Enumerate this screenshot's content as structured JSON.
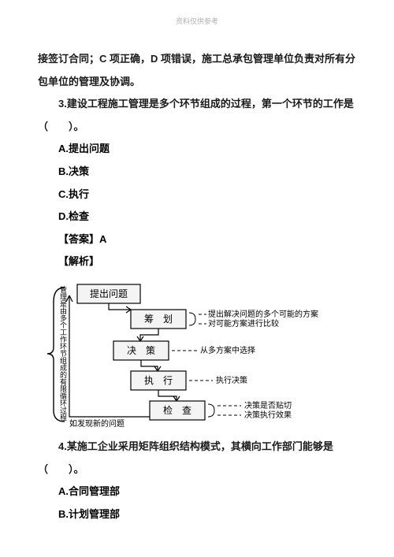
{
  "header": {
    "watermark": "资料仅供参考"
  },
  "para1": "接签订合同；C 项正确，D 项错误，施工总承包管理单位负责对所有分包单位的管理及协调。",
  "q3": {
    "stem1": "3.建设工程施工管理是多个环节组成的过程，第一个环节的工作是",
    "stem2": "（　　）。",
    "options": {
      "a": "A.提出问题",
      "b": "B.决策",
      "c": "C.执行",
      "d": "D.检查"
    },
    "answer_label": "【答案】A",
    "explain_label": "【解析】"
  },
  "diagram": {
    "vertical_label": "管理是由多个工作环节组成的有限循环过程",
    "bottom_label": "如发现新的问题",
    "nodes": {
      "n1": "提出问题",
      "n2": "筹　划",
      "n3": "决　策",
      "n4": "执　行",
      "n5": "检　查"
    },
    "annotations": {
      "a1": "提出解决问题的多个可能的方案",
      "a2": "对可能方案进行比较",
      "a3": "从多方案中选择",
      "a4": "执行决策",
      "a5": "决策是否贴切",
      "a6": "决策执行效果"
    },
    "style": {
      "node_fill": "#f4f4f4",
      "node_stroke": "#000000",
      "dash": "4,3",
      "text_color": "#000000",
      "node_font": 12,
      "ann_font": 10,
      "vlabel_font": 9
    }
  },
  "q4": {
    "stem1": "4.某施工企业采用矩阵组织结构模式，其横向工作部门能够是",
    "stem2": "（　　）。",
    "options": {
      "a": "A.合同管理部",
      "b": "B.计划管理部"
    }
  }
}
